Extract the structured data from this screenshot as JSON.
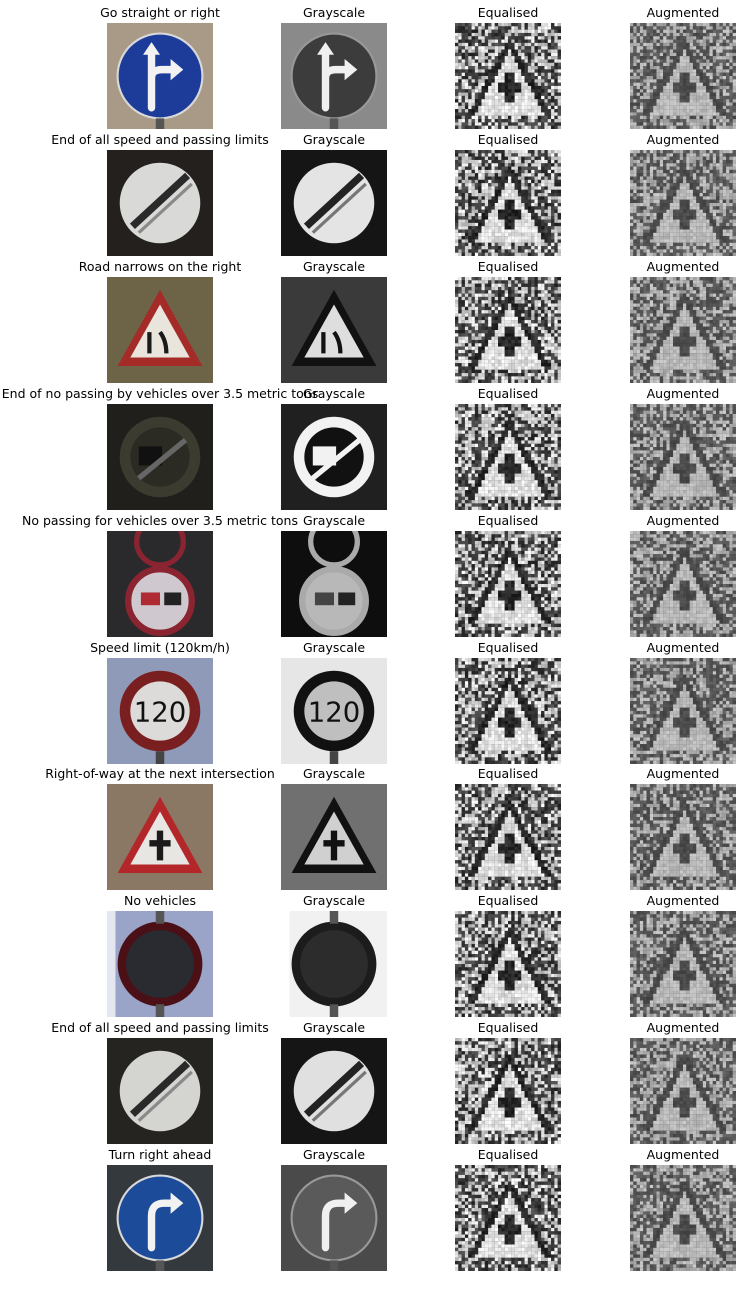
{
  "column_titles": {
    "grayscale": "Grayscale",
    "equalised": "Equalised",
    "augmented": "Augmented"
  },
  "rows": [
    {
      "label": "Go straight or right",
      "sign": "straight-or-right",
      "bg": "#a89a86",
      "primary": "#1d3c9a",
      "rim": "#1d3c9a",
      "gray_bg": "#8a8a8a",
      "gray_primary": "#3c3c3c"
    },
    {
      "label": "End of all speed and passing limits",
      "sign": "end-of-limits",
      "bg": "#23201e",
      "primary": "#d9d9d7",
      "rim": "#cfcfcf",
      "gray_bg": "#151515",
      "gray_primary": "#e4e4e4"
    },
    {
      "label": "Road narrows on the right",
      "sign": "road-narrows-right",
      "bg": "#6d6448",
      "primary": "#e9e5dd",
      "rim": "#a52b28",
      "gray_bg": "#3a3a3a",
      "gray_primary": "#dedede"
    },
    {
      "label": "End of no passing by vehicles over 3.5 metric tons",
      "sign": "end-no-passing-trucks",
      "bg": "#201f1b",
      "primary": "#3b3b30",
      "rim": "#7a7a6c",
      "gray_bg": "#202020",
      "gray_primary": "#e8e8e8"
    },
    {
      "label": "No passing for vehicles over 3.5 metric tons",
      "sign": "no-passing-trucks",
      "bg": "#2a2a2d",
      "primary": "#cfc9cf",
      "rim": "#8a2430",
      "gray_bg": "#0e0e0e",
      "gray_primary": "#b8b8b8"
    },
    {
      "label": "Speed limit (120km/h)",
      "sign": "speed-120",
      "bg": "#8e9ab8",
      "primary": "#dcdbd9",
      "rim": "#7a1f20",
      "gray_bg": "#e6e6e6",
      "gray_primary": "#bfbfbf"
    },
    {
      "label": "Right-of-way at the next intersection",
      "sign": "right-of-way",
      "bg": "#8a7865",
      "primary": "#e8e6e2",
      "rim": "#b3262a",
      "gray_bg": "#707070",
      "gray_primary": "#d0d0d0"
    },
    {
      "label": "No vehicles",
      "sign": "no-vehicles",
      "bg": "#9aa3c8",
      "primary": "#2a2a31",
      "rim": "#4a1015",
      "gray_bg": "#f1f1f1",
      "gray_primary": "#2c2c2c"
    },
    {
      "label": "End of all speed and passing limits",
      "sign": "end-of-limits",
      "bg": "#262420",
      "primary": "#d4d4d1",
      "rim": "#cbcbcb",
      "gray_bg": "#151515",
      "gray_primary": "#e0e0e0"
    },
    {
      "label": "Turn right ahead",
      "sign": "turn-right",
      "bg": "#34393d",
      "primary": "#1c4b9a",
      "rim": "#1c4b9a",
      "gray_bg": "#4a4a4a",
      "gray_primary": "#5a5a5a"
    }
  ]
}
